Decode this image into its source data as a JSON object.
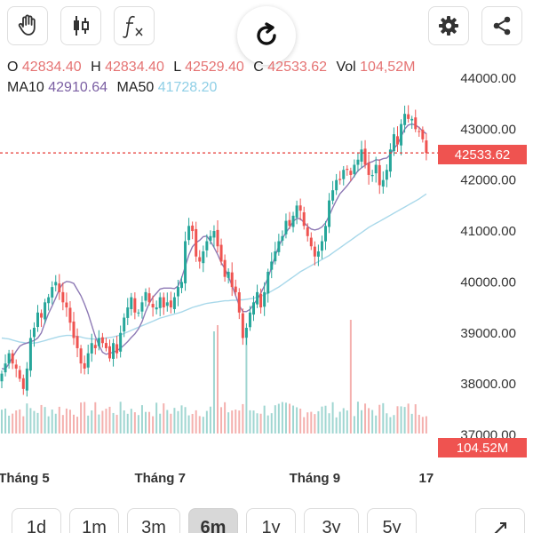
{
  "toolbar": {
    "buttons": [
      {
        "name": "hand-tool-button",
        "icon": "hand-icon"
      },
      {
        "name": "candle-type-button",
        "icon": "candlestick-icon"
      },
      {
        "name": "indicator-button",
        "icon": "function-icon"
      },
      {
        "name": "settings-button",
        "icon": "gear-icon"
      },
      {
        "name": "share-button",
        "icon": "share-icon"
      }
    ],
    "refresh_icon": "refresh-icon"
  },
  "ohlc": {
    "o_label": "O",
    "o_value": "42834.40",
    "h_label": "H",
    "h_value": "42834.40",
    "l_label": "L",
    "l_value": "42529.40",
    "c_label": "C",
    "c_value": "42533.62",
    "vol_label": "Vol",
    "vol_value": "104,52M"
  },
  "ma": {
    "ma10_label": "MA10",
    "ma10_value": "42910.64",
    "ma50_label": "MA50",
    "ma50_value": "41728.20"
  },
  "badges": {
    "last_price": "42533.62",
    "last_volume": "104.52M"
  },
  "colors": {
    "up": "#26a69a",
    "down": "#ef5350",
    "up_volume": "#9fd6d1",
    "down_volume": "#f4b0ae",
    "ma10": "#8e7ab5",
    "ma50": "#a8d8ea",
    "price_line": "#e53935"
  },
  "periods": [
    {
      "label": "1d",
      "active": false
    },
    {
      "label": "1m",
      "active": false
    },
    {
      "label": "3m",
      "active": false
    },
    {
      "label": "6m",
      "active": true
    },
    {
      "label": "1y",
      "active": false
    },
    {
      "label": "3y",
      "active": false
    },
    {
      "label": "5y",
      "active": false
    }
  ],
  "expand_icon": "expand-icon",
  "chart_data": {
    "type": "candlestick",
    "y_ticks": [
      "44000.00",
      "43000.00",
      "42000.00",
      "41000.00",
      "40000.00",
      "39000.00",
      "38000.00",
      "37000.00"
    ],
    "ylim": [
      37000,
      44000
    ],
    "x_labels": [
      {
        "label": "Tháng 5",
        "at": 0
      },
      {
        "label": "Tháng 7",
        "at": 44
      },
      {
        "label": "Tháng 9",
        "at": 87
      },
      {
        "label": "17",
        "at": 118
      }
    ],
    "last_close": 42533.62,
    "close": [
      38200,
      38400,
      38600,
      38400,
      38300,
      38100,
      37900,
      38300,
      38900,
      39100,
      39400,
      39300,
      39600,
      39700,
      39900,
      40000,
      39800,
      39600,
      39500,
      39200,
      38900,
      38700,
      38400,
      38300,
      38600,
      38800,
      38700,
      38900,
      38800,
      38700,
      38500,
      38800,
      38600,
      39000,
      39300,
      39500,
      39700,
      39400,
      39400,
      39600,
      39800,
      39600,
      39500,
      39500,
      39700,
      39500,
      39600,
      39500,
      39700,
      39900,
      40000,
      40800,
      41100,
      41000,
      40500,
      40400,
      40600,
      40800,
      40900,
      41000,
      40700,
      40400,
      40100,
      40200,
      39900,
      39800,
      39400,
      38900,
      39100,
      39400,
      39600,
      39800,
      39500,
      39800,
      40200,
      40400,
      40600,
      40800,
      40900,
      41200,
      41100,
      41300,
      41500,
      41400,
      41100,
      40900,
      40700,
      40500,
      40600,
      40800,
      41100,
      41600,
      41800,
      42000,
      42000,
      42200,
      42200,
      42100,
      42300,
      42400,
      42600,
      42300,
      42100,
      42100,
      42300,
      41900,
      42000,
      42200,
      42600,
      42900,
      42700,
      43100,
      43300,
      43200,
      43200,
      43000,
      42950,
      42800,
      42533.62
    ],
    "ma10": [
      38300,
      38290,
      38400,
      38520,
      38640,
      38740,
      38780,
      38800,
      38830,
      38850,
      38900,
      39000,
      39200,
      39380,
      39530,
      39690,
      39860,
      39970,
      40010,
      40000,
      39970,
      39850,
      39730,
      39570,
      39380,
      39150,
      38930,
      38760,
      38620,
      38580,
      38600,
      38620,
      38650,
      38700,
      38760,
      38830,
      38910,
      38980,
      39080,
      39220,
      39420,
      39580,
      39700,
      39780,
      39860,
      39880,
      39880,
      39880,
      39870,
      39920,
      40080,
      40300,
      40530,
      40690,
      40770,
      40820,
      40890,
      40900,
      40800,
      40680,
      40540,
      40380,
      40260,
      40110,
      39930,
      39730,
      39540,
      39420,
      39420,
      39460,
      39560,
      39660,
      39780,
      39920,
      40080,
      40290,
      40510,
      40700,
      40850,
      40970,
      41070,
      41190,
      41250,
      41240,
      41170,
      41090,
      41040,
      41020,
      41040,
      41080,
      41160,
      41300,
      41460,
      41600,
      41730,
      41810,
      41890,
      41980,
      42080,
      42180,
      42240,
      42290,
      42340,
      42360,
      42400,
      42390,
      42420,
      42430,
      42500,
      42620,
      42700,
      42850,
      43000,
      43080,
      43100,
      43080,
      43030,
      42960,
      42910.64
    ],
    "ma50": [
      38900,
      38890,
      38880,
      38860,
      38840,
      38820,
      38810,
      38800,
      38800,
      38800,
      38810,
      38830,
      38850,
      38870,
      38890,
      38910,
      38930,
      38940,
      38950,
      38950,
      38940,
      38930,
      38920,
      38900,
      38890,
      38880,
      38880,
      38880,
      38890,
      38900,
      38910,
      38920,
      38940,
      38960,
      38990,
      39020,
      39050,
      39080,
      39110,
      39140,
      39170,
      39200,
      39230,
      39260,
      39290,
      39310,
      39330,
      39350,
      39370,
      39390,
      39410,
      39440,
      39470,
      39500,
      39520,
      39540,
      39560,
      39580,
      39590,
      39600,
      39610,
      39620,
      39630,
      39630,
      39640,
      39640,
      39650,
      39650,
      39660,
      39670,
      39680,
      39700,
      39720,
      39750,
      39780,
      39820,
      39860,
      39900,
      39950,
      40000,
      40050,
      40100,
      40150,
      40200,
      40240,
      40280,
      40320,
      40360,
      40400,
      40440,
      40480,
      40520,
      40570,
      40620,
      40670,
      40720,
      40770,
      40820,
      40870,
      40920,
      40970,
      41020,
      41070,
      41110,
      41150,
      41190,
      41230,
      41270,
      41310,
      41350,
      41390,
      41430,
      41470,
      41510,
      41550,
      41590,
      41630,
      41680,
      41728.2
    ],
    "volume_peaks": [
      {
        "index": 59,
        "value": 115
      },
      {
        "index": 60,
        "value": 122
      },
      {
        "index": 68,
        "value": 110
      },
      {
        "index": 97,
        "value": 128
      }
    ]
  }
}
